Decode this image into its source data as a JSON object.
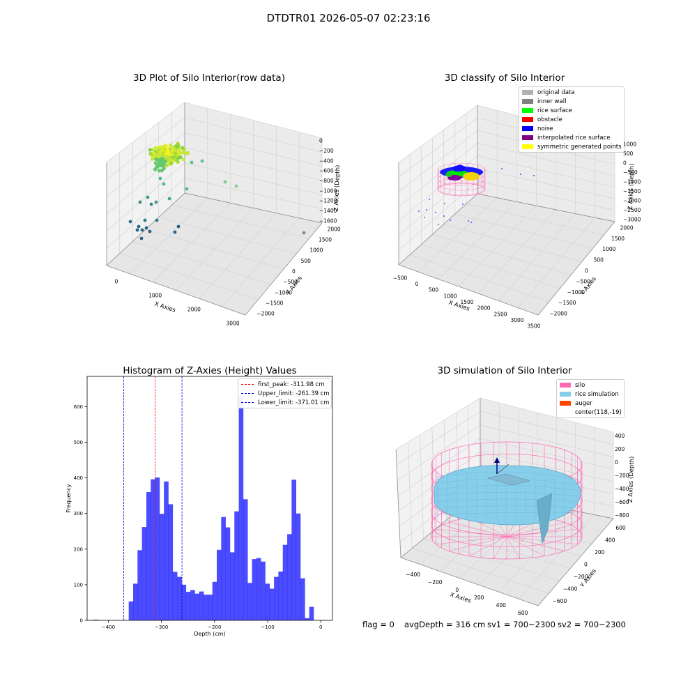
{
  "suptitle": "DTDTR01 2026-05-07 02:23:16",
  "footer": {
    "flag": "flag = 0",
    "avg": "avgDepth = 316 cm",
    "sv1": "sv1 = 700~2300",
    "sv2": "sv2 = 700~2300"
  },
  "chart_data": [
    {
      "type": "scatter",
      "title": "3D Plot of Silo Interior(row data)",
      "xlabel": "X Axies",
      "ylabel": "Y Axies",
      "zlabel": "Z Axies (Depth)",
      "x_ticks": [
        "0",
        "1000",
        "2000",
        "3000"
      ],
      "y_ticks": [
        "2000",
        "1500",
        "1000",
        "500",
        "0",
        "−500",
        "−1000",
        "−1500",
        "−2000"
      ],
      "z_ticks": [
        "0",
        "−200",
        "−400",
        "−600",
        "−800",
        "−1000",
        "−1200",
        "−1400",
        "−1600"
      ]
    },
    {
      "type": "scatter",
      "title": "3D classify of Silo Interior",
      "xlabel": "X Axies",
      "ylabel": "Y Axies",
      "zlabel": "Z Axies (Depth)",
      "x_ticks": [
        "−500",
        "0",
        "500",
        "1000",
        "1500",
        "2000",
        "2500",
        "3000",
        "3500"
      ],
      "y_ticks": [
        "2000",
        "1500",
        "1000",
        "500",
        "0",
        "−500",
        "−1000",
        "−1500",
        "−2000"
      ],
      "z_ticks": [
        "1000",
        "500",
        "0",
        "−500",
        "−1000",
        "−1500",
        "−2000",
        "−2500",
        "−3000"
      ],
      "legend": [
        {
          "label": "original data",
          "color": "#b0b0b0"
        },
        {
          "label": "inner wall",
          "color": "#808080"
        },
        {
          "label": "rice surface",
          "color": "#00ff00"
        },
        {
          "label": "obstacle",
          "color": "#ff0000"
        },
        {
          "label": "noise",
          "color": "#0000ff"
        },
        {
          "label": "interpolated rice surface",
          "color": "#800080"
        },
        {
          "label": "symmetric generated points",
          "color": "#ffff00"
        }
      ]
    },
    {
      "type": "bar",
      "title": "Histogram of Z-Axies (Height) Values",
      "xlabel": "Depth (cm)",
      "ylabel": "Frequency",
      "xlim": [
        -440,
        22
      ],
      "ylim": [
        0,
        685
      ],
      "x_ticks": [
        -400,
        -300,
        -200,
        -100,
        0
      ],
      "x_tick_labels": [
        "−400",
        "−300",
        "−200",
        "−100",
        "0"
      ],
      "y_ticks": [
        0,
        100,
        200,
        300,
        400,
        500,
        600
      ],
      "bar_color": "#0000ff",
      "bin_width": 8.29,
      "bin_start": -428,
      "values": [
        2,
        0,
        0,
        0,
        0,
        0,
        0,
        0,
        53,
        103,
        197,
        262,
        360,
        396,
        401,
        299,
        390,
        326,
        136,
        122,
        100,
        80,
        85,
        75,
        81,
        72,
        72,
        108,
        198,
        290,
        261,
        191,
        306,
        630,
        340,
        105,
        172,
        175,
        165,
        103,
        89,
        122,
        137,
        212,
        242,
        395,
        300,
        118,
        6,
        38
      ],
      "vlines": [
        {
          "label": "first_peak: -311.98 cm",
          "x": -311.98,
          "color": "#ff0000"
        },
        {
          "label": "Upper_limit: -261.39 cm",
          "x": -261.39,
          "color": "#0000cc"
        },
        {
          "label": "Lower_limit: -371.01 cm",
          "x": -371.01,
          "color": "#0000cc"
        }
      ]
    },
    {
      "type": "area",
      "title": "3D simulation of Silo Interior",
      "xlabel": "X Axies",
      "ylabel": "Y Axies",
      "zlabel": "Z Axies (Depth)",
      "x_ticks": [
        "−400",
        "−200",
        "0",
        "200",
        "400",
        "600"
      ],
      "y_ticks": [
        "600",
        "400",
        "200",
        "0",
        "−200",
        "−400",
        "−600"
      ],
      "z_ticks": [
        "400",
        "200",
        "0",
        "−200",
        "−400",
        "−600",
        "−800"
      ],
      "legend": [
        {
          "label": "silo",
          "color": "#ff69b4"
        },
        {
          "label": "rice simulation",
          "color": "#87ceeb"
        },
        {
          "label": "auger",
          "color": "#ff4500"
        },
        {
          "label": "center(118,-19)",
          "color": ""
        }
      ]
    }
  ]
}
